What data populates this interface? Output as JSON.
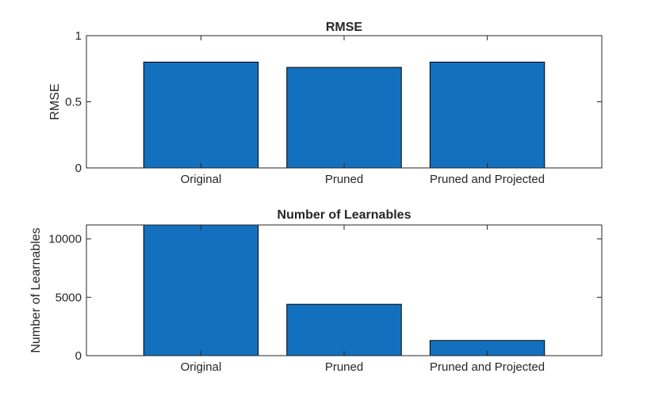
{
  "figure": {
    "bar_color": "#1370BE",
    "edge_color": "#000000",
    "axis_color": "#262626",
    "background": "#FFFFFF"
  },
  "chart_data": [
    {
      "type": "bar",
      "title": "RMSE",
      "xlabel": "",
      "ylabel": "RMSE",
      "categories": [
        "Original",
        "Pruned",
        "Pruned and Projected"
      ],
      "values": [
        0.8,
        0.76,
        0.8
      ],
      "ylim": [
        0,
        1
      ],
      "xlim": [
        0.2,
        3.8
      ],
      "yticks": [
        0,
        0.5,
        1
      ],
      "ytick_labels": [
        "0",
        "0.5",
        "1"
      ],
      "grid": false,
      "legend": "none"
    },
    {
      "type": "bar",
      "title": "Number of Learnables",
      "xlabel": "",
      "ylabel": "Number of Learnables",
      "categories": [
        "Original",
        "Pruned",
        "Pruned and Projected"
      ],
      "values": [
        11200,
        4400,
        1300
      ],
      "ylim": [
        0,
        11200
      ],
      "xlim": [
        0.2,
        3.8
      ],
      "yticks": [
        0,
        5000,
        10000
      ],
      "ytick_labels": [
        "0",
        "5000",
        "10000"
      ],
      "grid": false,
      "legend": "none"
    }
  ]
}
